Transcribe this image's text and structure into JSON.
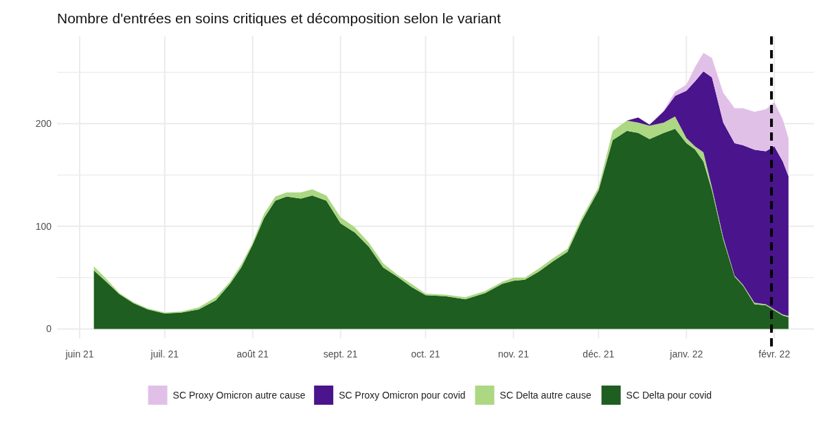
{
  "chart_data": {
    "type": "area",
    "stacked": true,
    "title": "Nombre d'entrées en soins critiques et décomposition selon le variant",
    "x": [
      "2021-06-06",
      "2021-06-10",
      "2021-06-15",
      "2021-06-20",
      "2021-06-25",
      "2021-07-01",
      "2021-07-07",
      "2021-07-13",
      "2021-07-19",
      "2021-07-24",
      "2021-07-28",
      "2021-08-01",
      "2021-08-05",
      "2021-08-09",
      "2021-08-13",
      "2021-08-18",
      "2021-08-22",
      "2021-08-27",
      "2021-09-01",
      "2021-09-06",
      "2021-09-11",
      "2021-09-16",
      "2021-09-21",
      "2021-09-26",
      "2021-10-01",
      "2021-10-08",
      "2021-10-15",
      "2021-10-22",
      "2021-10-28",
      "2021-11-01",
      "2021-11-05",
      "2021-11-10",
      "2021-11-15",
      "2021-11-20",
      "2021-11-25",
      "2021-12-01",
      "2021-12-06",
      "2021-12-11",
      "2021-12-15",
      "2021-12-19",
      "2021-12-24",
      "2021-12-28",
      "2022-01-01",
      "2022-01-04",
      "2022-01-07",
      "2022-01-10",
      "2022-01-14",
      "2022-01-18",
      "2022-01-21",
      "2022-01-25",
      "2022-01-29",
      "2022-02-01",
      "2022-02-04",
      "2022-02-06"
    ],
    "series": [
      {
        "name": "SC Delta pour covid",
        "color": "#1e5e20",
        "values": [
          57,
          47,
          34,
          25,
          19,
          15,
          16,
          19,
          28,
          44,
          60,
          82,
          108,
          125,
          129,
          127,
          130,
          125,
          103,
          94,
          80,
          60,
          51,
          41,
          33,
          32,
          29,
          35,
          44,
          47,
          48,
          56,
          66,
          75,
          105,
          135,
          184,
          193,
          191,
          185,
          191,
          195,
          181,
          175,
          163,
          135,
          87,
          51,
          42,
          24,
          23,
          18,
          13,
          11.5
        ]
      },
      {
        "name": "SC Delta autre cause",
        "color": "#acd783",
        "values": [
          4,
          3,
          1,
          1,
          1,
          1,
          1,
          2,
          3,
          2,
          3,
          2,
          4,
          4,
          4,
          6,
          6,
          5,
          6,
          5,
          4,
          4,
          2,
          3,
          1.5,
          1.5,
          2,
          2,
          2,
          3,
          2,
          3,
          3,
          3,
          3,
          3,
          9,
          10,
          10,
          13,
          10,
          12,
          5,
          3,
          9,
          3,
          2,
          1,
          1,
          1.5,
          1,
          1,
          1,
          1.2
        ]
      },
      {
        "name": "SC Proxy Omicron pour covid",
        "color": "#4a148c",
        "values": [
          0,
          0,
          0,
          0,
          0,
          0,
          0,
          0,
          0,
          0,
          0,
          0,
          0,
          0,
          0,
          0,
          0,
          0,
          0,
          0,
          0,
          0,
          0,
          0,
          0,
          0,
          0,
          0,
          0,
          0,
          0,
          0,
          0,
          0,
          0,
          0,
          0,
          0,
          5,
          1,
          11,
          20,
          46,
          63,
          79,
          107,
          112,
          129,
          136,
          149,
          149,
          159,
          149,
          136
        ]
      },
      {
        "name": "SC Proxy Omicron autre cause",
        "color": "#e1c0e8",
        "values": [
          0,
          0,
          0,
          0,
          0,
          0,
          0,
          0,
          0,
          0,
          0,
          0,
          0,
          0,
          0,
          0,
          0,
          0,
          0,
          0,
          0,
          0,
          0,
          0,
          0,
          0,
          0,
          0,
          0,
          0,
          0,
          0,
          0,
          0,
          0,
          0,
          0,
          0,
          0,
          0,
          1,
          4,
          6,
          14,
          18,
          19,
          29,
          34,
          36,
          37,
          41,
          43,
          41,
          37
        ]
      }
    ],
    "xlim": [
      "2021-05-24",
      "2022-02-15"
    ],
    "xticks": [
      {
        "value": "2021-06-01",
        "label": "juin 21"
      },
      {
        "value": "2021-07-01",
        "label": "juil. 21"
      },
      {
        "value": "2021-08-01",
        "label": "août 21"
      },
      {
        "value": "2021-09-01",
        "label": "sept. 21"
      },
      {
        "value": "2021-10-01",
        "label": "oct. 21"
      },
      {
        "value": "2021-11-01",
        "label": "nov. 21"
      },
      {
        "value": "2021-12-01",
        "label": "déc. 21"
      },
      {
        "value": "2022-01-01",
        "label": "janv. 22"
      },
      {
        "value": "2022-02-01",
        "label": "févr. 22"
      }
    ],
    "ylim": [
      -9,
      285
    ],
    "yticks": [
      0,
      {
        "value": 50,
        "label": null
      },
      100,
      {
        "value": 150,
        "label": null
      },
      200,
      {
        "value": 250,
        "label": null
      }
    ],
    "ref_lines": [
      {
        "axis": "x",
        "value": "2022-01-31",
        "label": null,
        "color": "#000000",
        "line_style": "dashed"
      }
    ],
    "grid": true,
    "legend": "bottom"
  }
}
